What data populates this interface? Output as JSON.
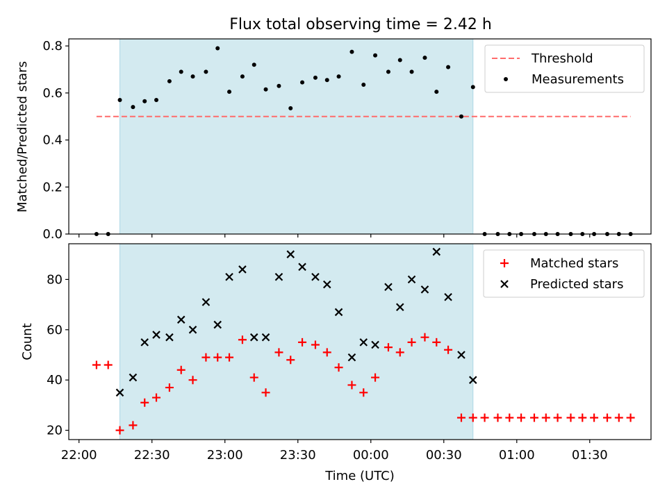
{
  "chart_data": {
    "title": "Flux total observing time = 2.42 h",
    "xlabel": "Time (UTC)",
    "x_tick_labels": [
      "22:00",
      "22:30",
      "23:00",
      "23:30",
      "00:00",
      "00:30",
      "01:00",
      "01:30"
    ],
    "x_tick_hours": [
      0,
      0.5,
      1,
      1.5,
      2,
      2.5,
      3,
      3.5
    ],
    "x_range_hours": [
      -0.07,
      3.92
    ],
    "x_reference_time": "22:00",
    "shaded_span_hours": [
      0.28,
      2.7
    ],
    "shaded_color": "#d3eaf0",
    "panels": [
      {
        "id": "ratio",
        "type": "scatter",
        "ylabel": "Matched/Predicted stars",
        "ylim": [
          0,
          0.83
        ],
        "y_ticks": [
          0.0,
          0.2,
          0.4,
          0.6,
          0.8
        ],
        "y_tick_labels": [
          "0.0",
          "0.2",
          "0.4",
          "0.6",
          "0.8"
        ],
        "legend_position": "upper right",
        "threshold": {
          "name": "Threshold",
          "value": 0.5,
          "x_range": [
            0.12,
            3.78
          ],
          "color": "#ff6b6b"
        },
        "series": [
          {
            "name": "Measurements",
            "marker": "dot",
            "color": "#000000",
            "x": [
              0.12,
              0.2,
              0.28,
              0.37,
              0.45,
              0.53,
              0.62,
              0.7,
              0.78,
              0.87,
              0.95,
              1.03,
              1.12,
              1.2,
              1.28,
              1.37,
              1.45,
              1.53,
              1.62,
              1.7,
              1.78,
              1.87,
              1.95,
              2.03,
              2.12,
              2.2,
              2.28,
              2.37,
              2.45,
              2.53,
              2.62,
              2.7,
              2.78,
              2.87,
              2.95,
              3.03,
              3.12,
              3.2,
              3.28,
              3.37,
              3.45,
              3.53,
              3.62,
              3.7,
              3.78
            ],
            "y": [
              0.0,
              0.0,
              0.57,
              0.54,
              0.565,
              0.57,
              0.65,
              0.69,
              0.67,
              0.69,
              0.79,
              0.605,
              0.67,
              0.72,
              0.615,
              0.63,
              0.535,
              0.645,
              0.665,
              0.655,
              0.67,
              0.775,
              0.635,
              0.76,
              0.69,
              0.74,
              0.69,
              0.75,
              0.605,
              0.71,
              0.5,
              0.625,
              0.0,
              0.0,
              0.0,
              0.0,
              0.0,
              0.0,
              0.0,
              0.0,
              0.0,
              0.0,
              0.0,
              0.0,
              0.0
            ]
          }
        ]
      },
      {
        "id": "counts",
        "type": "scatter",
        "ylabel": "Count",
        "ylim": [
          16.3,
          94.2
        ],
        "y_ticks": [
          20,
          40,
          60,
          80
        ],
        "y_tick_labels": [
          "20",
          "40",
          "60",
          "80"
        ],
        "legend_position": "upper right",
        "series": [
          {
            "name": "Matched stars",
            "marker": "plus",
            "color": "#ff0000",
            "x": [
              0.12,
              0.2,
              0.28,
              0.37,
              0.45,
              0.53,
              0.62,
              0.7,
              0.78,
              0.87,
              0.95,
              1.03,
              1.12,
              1.2,
              1.28,
              1.37,
              1.45,
              1.53,
              1.62,
              1.7,
              1.78,
              1.87,
              1.95,
              2.03,
              2.12,
              2.2,
              2.28,
              2.37,
              2.45,
              2.53,
              2.62,
              2.7,
              2.78,
              2.87,
              2.95,
              3.03,
              3.12,
              3.2,
              3.28,
              3.37,
              3.45,
              3.53,
              3.62,
              3.7,
              3.78
            ],
            "y": [
              46,
              46,
              20,
              22,
              31,
              33,
              37,
              44,
              40,
              49,
              49,
              49,
              56,
              41,
              35,
              51,
              48,
              55,
              54,
              51,
              45,
              38,
              35,
              41,
              53,
              51,
              55,
              57,
              55,
              52,
              25,
              25,
              25,
              25,
              25,
              25,
              25,
              25,
              25,
              25,
              25,
              25,
              25,
              25,
              25
            ]
          },
          {
            "name": "Predicted stars",
            "marker": "x",
            "color": "#000000",
            "x": [
              0.28,
              0.37,
              0.45,
              0.53,
              0.62,
              0.7,
              0.78,
              0.87,
              0.95,
              1.03,
              1.12,
              1.2,
              1.28,
              1.37,
              1.45,
              1.53,
              1.62,
              1.7,
              1.78,
              1.87,
              1.95,
              2.03,
              2.12,
              2.2,
              2.28,
              2.37,
              2.45,
              2.53,
              2.62,
              2.7
            ],
            "y": [
              35,
              41,
              55,
              58,
              57,
              64,
              60,
              71,
              62,
              81,
              84,
              57,
              57,
              81,
              90,
              85,
              81,
              78,
              67,
              49,
              55,
              54,
              77,
              69,
              80,
              76,
              91,
              73,
              50,
              40
            ]
          }
        ]
      }
    ]
  }
}
